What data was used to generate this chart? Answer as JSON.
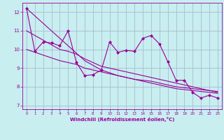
{
  "x": [
    0,
    1,
    2,
    3,
    4,
    5,
    6,
    7,
    8,
    9,
    10,
    11,
    12,
    13,
    14,
    15,
    16,
    17,
    18,
    19,
    20,
    21,
    22,
    23
  ],
  "y_data": [
    12.2,
    9.9,
    10.4,
    10.35,
    10.2,
    11.0,
    9.3,
    8.6,
    8.65,
    8.9,
    10.4,
    9.85,
    9.95,
    9.9,
    10.6,
    10.75,
    10.3,
    9.35,
    8.35,
    8.35,
    7.7,
    7.4,
    7.55,
    7.4
  ],
  "trend1": [
    12.2,
    11.8,
    11.4,
    11.0,
    10.6,
    10.2,
    9.8,
    9.4,
    9.15,
    8.9,
    8.75,
    8.6,
    8.5,
    8.4,
    8.3,
    8.2,
    8.1,
    8.0,
    7.9,
    7.85,
    7.8,
    7.75,
    7.7,
    7.65
  ],
  "trend2": [
    11.0,
    10.75,
    10.5,
    10.25,
    10.0,
    9.9,
    9.75,
    9.5,
    9.3,
    9.1,
    9.0,
    8.9,
    8.8,
    8.7,
    8.6,
    8.5,
    8.4,
    8.3,
    8.2,
    8.1,
    8.0,
    7.9,
    7.8,
    7.7
  ],
  "trend3": [
    10.0,
    9.85,
    9.7,
    9.55,
    9.4,
    9.3,
    9.2,
    9.0,
    8.9,
    8.8,
    8.7,
    8.6,
    8.5,
    8.4,
    8.35,
    8.3,
    8.2,
    8.1,
    8.0,
    7.95,
    7.9,
    7.85,
    7.8,
    7.75
  ],
  "bg_color": "#c8eef0",
  "grid_color": "#aabbd0",
  "line_color": "#990099",
  "xlabel": "Windchill (Refroidissement éolien,°C)",
  "ylim": [
    6.8,
    12.5
  ],
  "xlim": [
    -0.5,
    23.5
  ],
  "yticks": [
    7,
    8,
    9,
    10,
    11,
    12
  ],
  "xticks": [
    0,
    1,
    2,
    3,
    4,
    5,
    6,
    7,
    8,
    9,
    10,
    11,
    12,
    13,
    14,
    15,
    16,
    17,
    18,
    19,
    20,
    21,
    22,
    23
  ]
}
